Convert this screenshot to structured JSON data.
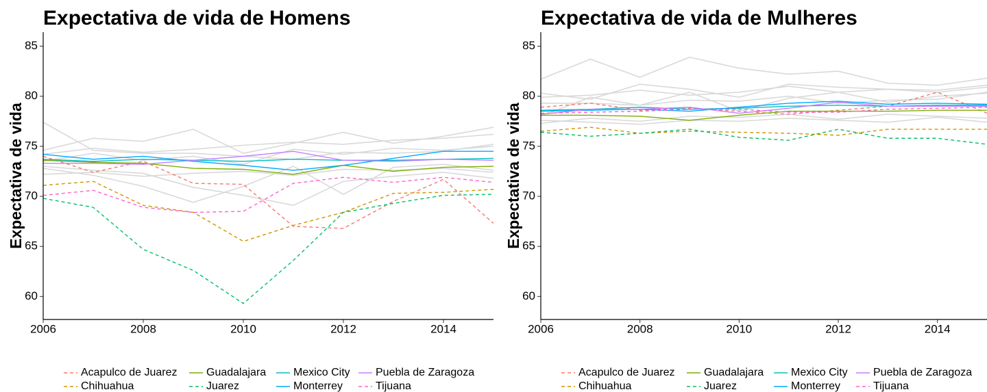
{
  "chart_data": [
    {
      "type": "line",
      "title": "Expectativa de vida de Homens",
      "y_label": "Expectativa de vida",
      "x": [
        2006,
        2007,
        2008,
        2009,
        2010,
        2011,
        2012,
        2013,
        2014,
        2015
      ],
      "xlim": [
        2006,
        2015
      ],
      "xticks": [
        2006,
        2008,
        2010,
        2012,
        2014
      ],
      "ylim": [
        57.7,
        86.4
      ],
      "yticks": [
        60,
        65,
        70,
        75,
        80,
        85
      ],
      "legend": "bottom",
      "series": [
        {
          "color": "#d9d9d9",
          "values": [
            77.4,
            74.6,
            74.3,
            74.3,
            74.0,
            73.7,
            74.4,
            74.3,
            74.5,
            75.2
          ]
        },
        {
          "color": "#d9d9d9",
          "values": [
            74.6,
            75.8,
            75.5,
            76.7,
            74.3,
            75.3,
            76.4,
            75.3,
            76.0,
            76.9
          ]
        },
        {
          "color": "#d9d9d9",
          "values": [
            73.0,
            72.6,
            72.3,
            70.9,
            70.1,
            69.1,
            71.5,
            72.0,
            72.4,
            71.8
          ]
        },
        {
          "color": "#d9d9d9",
          "values": [
            74.2,
            74.8,
            74.4,
            74.7,
            75.1,
            75.4,
            75.2,
            75.6,
            75.8,
            76.2
          ]
        },
        {
          "color": "#d9d9d9",
          "values": [
            72.8,
            72.1,
            71.0,
            69.4,
            71.0,
            73.0,
            70.2,
            72.9,
            73.2,
            72.6
          ]
        },
        {
          "color": "#d9d9d9",
          "values": [
            73.5,
            74.3,
            73.6,
            74.0,
            73.2,
            74.7,
            74.2,
            74.8,
            74.6,
            75.0
          ]
        },
        {
          "color": "#d9d9d9",
          "values": [
            72.2,
            72.4,
            72.0,
            72.3,
            72.5,
            72.1,
            72.7,
            72.6,
            72.8,
            72.4
          ]
        },
        {
          "name": "Acapulco de Juarez",
          "color": "#F8766D",
          "dash": true,
          "values": [
            74.0,
            72.4,
            73.5,
            71.3,
            71.2,
            67.0,
            66.8,
            69.5,
            71.7,
            67.3
          ]
        },
        {
          "name": "Chihuahua",
          "color": "#CD9600",
          "dash": true,
          "values": [
            71.1,
            71.5,
            69.1,
            68.4,
            65.5,
            67.1,
            68.4,
            70.3,
            70.4,
            70.7
          ]
        },
        {
          "name": "Guadalajara",
          "color": "#7CAE00",
          "dash": false,
          "values": [
            73.6,
            73.4,
            73.3,
            72.8,
            72.7,
            72.2,
            73.1,
            72.5,
            72.9,
            73.0
          ]
        },
        {
          "name": "Juarez",
          "color": "#00BE67",
          "dash": true,
          "values": [
            69.8,
            68.9,
            64.7,
            62.6,
            59.3,
            63.6,
            68.4,
            69.3,
            70.1,
            70.2
          ]
        },
        {
          "name": "Mexico City",
          "color": "#00BFC4",
          "dash": false,
          "values": [
            73.7,
            73.5,
            73.7,
            73.6,
            73.5,
            73.7,
            73.6,
            73.6,
            73.7,
            73.8
          ]
        },
        {
          "name": "Monterrey",
          "color": "#00A9FF",
          "dash": false,
          "values": [
            74.2,
            73.7,
            74.0,
            73.5,
            73.1,
            72.6,
            73.1,
            73.8,
            74.5,
            74.5
          ]
        },
        {
          "name": "Puebla de Zaragoza",
          "color": "#C77CFF",
          "dash": false,
          "values": [
            73.3,
            73.3,
            73.2,
            73.6,
            74.0,
            74.5,
            73.6,
            73.5,
            73.7,
            73.6
          ]
        },
        {
          "name": "Tijuana",
          "color": "#FF61CC",
          "dash": true,
          "values": [
            70.1,
            70.6,
            68.9,
            68.4,
            68.5,
            71.3,
            71.9,
            71.4,
            71.9,
            71.4
          ]
        }
      ]
    },
    {
      "type": "line",
      "title": "Expectativa de vida de Mulheres",
      "y_label": "Expectativa de vida",
      "x": [
        2006,
        2007,
        2008,
        2009,
        2010,
        2011,
        2012,
        2013,
        2014,
        2015
      ],
      "xlim": [
        2006,
        2015
      ],
      "xticks": [
        2006,
        2008,
        2010,
        2012,
        2014
      ],
      "ylim": [
        57.7,
        86.4
      ],
      "yticks": [
        60,
        65,
        70,
        75,
        80,
        85
      ],
      "legend": "bottom",
      "series": [
        {
          "color": "#d9d9d9",
          "values": [
            81.7,
            83.7,
            81.9,
            83.9,
            82.8,
            82.2,
            82.5,
            81.3,
            81.1,
            81.8
          ]
        },
        {
          "color": "#d9d9d9",
          "values": [
            79.9,
            80.1,
            80.6,
            80.1,
            80.4,
            81.0,
            80.4,
            80.7,
            80.4,
            80.9
          ]
        },
        {
          "color": "#d9d9d9",
          "values": [
            77.6,
            77.4,
            77.2,
            77.6,
            77.5,
            77.8,
            77.6,
            77.4,
            77.9,
            77.4
          ]
        },
        {
          "color": "#d9d9d9",
          "values": [
            80.3,
            79.7,
            81.2,
            80.7,
            79.9,
            81.2,
            80.9,
            80.7,
            80.6,
            81.1
          ]
        },
        {
          "color": "#d9d9d9",
          "values": [
            78.0,
            79.9,
            79.1,
            80.4,
            78.5,
            79.8,
            80.4,
            79.4,
            80.0,
            80.3
          ]
        },
        {
          "color": "#d9d9d9",
          "values": [
            79.3,
            79.3,
            79.1,
            79.6,
            79.5,
            80.0,
            79.3,
            79.6,
            79.7,
            80.4
          ]
        },
        {
          "color": "#d9d9d9",
          "values": [
            77.3,
            77.8,
            77.5,
            78.0,
            77.9,
            78.2,
            77.7,
            78.2,
            78.0,
            77.8
          ]
        },
        {
          "name": "Acapulco de Juarez",
          "color": "#F8766D",
          "dash": true,
          "values": [
            78.9,
            79.3,
            78.6,
            78.8,
            78.5,
            78.2,
            78.6,
            79.0,
            80.4,
            78.3
          ]
        },
        {
          "name": "Chihuahua",
          "color": "#CD9600",
          "dash": true,
          "values": [
            76.5,
            76.9,
            76.3,
            76.5,
            76.4,
            76.3,
            76.1,
            76.7,
            76.7,
            76.7
          ]
        },
        {
          "name": "Guadalajara",
          "color": "#7CAE00",
          "dash": false,
          "values": [
            78.1,
            78.1,
            78.0,
            77.6,
            78.1,
            78.5,
            78.5,
            78.5,
            78.6,
            78.6
          ]
        },
        {
          "name": "Juarez",
          "color": "#00BE67",
          "dash": true,
          "values": [
            76.4,
            76.0,
            76.3,
            76.7,
            75.9,
            75.6,
            76.7,
            75.8,
            75.8,
            75.2
          ]
        },
        {
          "name": "Mexico City",
          "color": "#00BFC4",
          "dash": false,
          "values": [
            78.6,
            78.7,
            78.9,
            78.7,
            78.8,
            79.0,
            79.1,
            79.0,
            79.1,
            79.1
          ]
        },
        {
          "name": "Monterrey",
          "color": "#00A9FF",
          "dash": false,
          "values": [
            78.5,
            78.6,
            78.7,
            78.5,
            78.9,
            79.3,
            79.5,
            79.2,
            79.3,
            79.2
          ]
        },
        {
          "name": "Puebla de Zaragoza",
          "color": "#C77CFF",
          "dash": false,
          "values": [
            78.2,
            78.7,
            78.7,
            78.9,
            78.3,
            78.8,
            79.4,
            79.0,
            79.0,
            79.0
          ]
        },
        {
          "name": "Tijuana",
          "color": "#FF61CC",
          "dash": true,
          "values": [
            78.3,
            78.4,
            78.5,
            78.7,
            78.7,
            78.4,
            78.4,
            78.7,
            78.8,
            78.9
          ]
        }
      ]
    }
  ]
}
